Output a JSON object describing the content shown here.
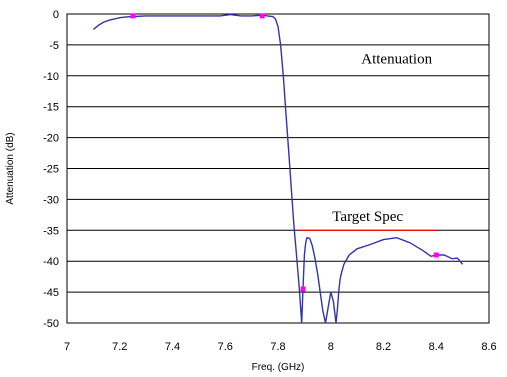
{
  "chart_data": {
    "type": "line",
    "title": "",
    "xlabel": "Freq. (GHz)",
    "ylabel": "Attenuation (dB)",
    "xlim": [
      7,
      8.6
    ],
    "ylim": [
      -50,
      0
    ],
    "xticks": [
      "7",
      "7.2",
      "7.4",
      "7.6",
      "7.8",
      "8",
      "8.2",
      "8.4",
      "8.6"
    ],
    "yticks": [
      "0",
      "-5",
      "-10",
      "-15",
      "-20",
      "-25",
      "-30",
      "-35",
      "-40",
      "-45",
      "-50"
    ],
    "xtick_values": [
      7,
      7.2,
      7.4,
      7.6,
      7.8,
      8,
      8.2,
      8.4,
      8.6
    ],
    "ytick_values": [
      0,
      -5,
      -10,
      -15,
      -20,
      -25,
      -30,
      -35,
      -40,
      -45,
      -50
    ],
    "grid": "horizontal",
    "annotations": [
      {
        "text": "Attenuation",
        "x": 8.25,
        "y": -8
      },
      {
        "text": "Target Spec",
        "x": 8.14,
        "y": -33.5
      }
    ],
    "target_spec": {
      "x": [
        7.88,
        8.4
      ],
      "y": [
        -35,
        -35
      ],
      "color": "#ff0000"
    },
    "series": [
      {
        "color": "#3333aa",
        "x": [
          7.1,
          7.12,
          7.14,
          7.16,
          7.18,
          7.2,
          7.22,
          7.25,
          7.3,
          7.4,
          7.5,
          7.58,
          7.62,
          7.66,
          7.7,
          7.74,
          7.76,
          7.78,
          7.79,
          7.8,
          7.81,
          7.82,
          7.83,
          7.84,
          7.85,
          7.86,
          7.87,
          7.88,
          7.885,
          7.89,
          7.895,
          7.9,
          7.905,
          7.91,
          7.92,
          7.93,
          7.94,
          7.95,
          7.96,
          7.97,
          7.98,
          7.99,
          8.0,
          8.01,
          8.02,
          8.025,
          8.03,
          8.035,
          8.04,
          8.05,
          8.07,
          8.1,
          8.15,
          8.2,
          8.25,
          8.3,
          8.35,
          8.38,
          8.4,
          8.43,
          8.46,
          8.48,
          8.5
        ],
        "y": [
          -2.5,
          -1.8,
          -1.3,
          -1.0,
          -0.8,
          -0.6,
          -0.5,
          -0.4,
          -0.3,
          -0.3,
          -0.3,
          -0.3,
          -0.1,
          -0.3,
          -0.3,
          -0.2,
          -0.3,
          -0.4,
          -0.8,
          -2.0,
          -5.0,
          -10.0,
          -16.0,
          -22.0,
          -28.0,
          -34.0,
          -39.0,
          -44.0,
          -47.0,
          -50.0,
          -44.0,
          -39.0,
          -37.0,
          -36.2,
          -36.3,
          -37.5,
          -39.5,
          -42.0,
          -45.0,
          -48.0,
          -50.0,
          -47.5,
          -45.0,
          -46.5,
          -50.0,
          -48.0,
          -45.0,
          -43.0,
          -42.0,
          -40.5,
          -39.0,
          -38.0,
          -37.3,
          -36.5,
          -36.2,
          -37.0,
          -38.3,
          -39.2,
          -39.0,
          -39.0,
          -39.6,
          -39.5,
          -40.5
        ]
      }
    ],
    "markers": {
      "color": "#ff00ff",
      "points": [
        [
          7.25,
          -0.3
        ],
        [
          7.74,
          -0.3
        ],
        [
          7.895,
          -44.5
        ],
        [
          8.4,
          -39.0
        ]
      ]
    }
  }
}
